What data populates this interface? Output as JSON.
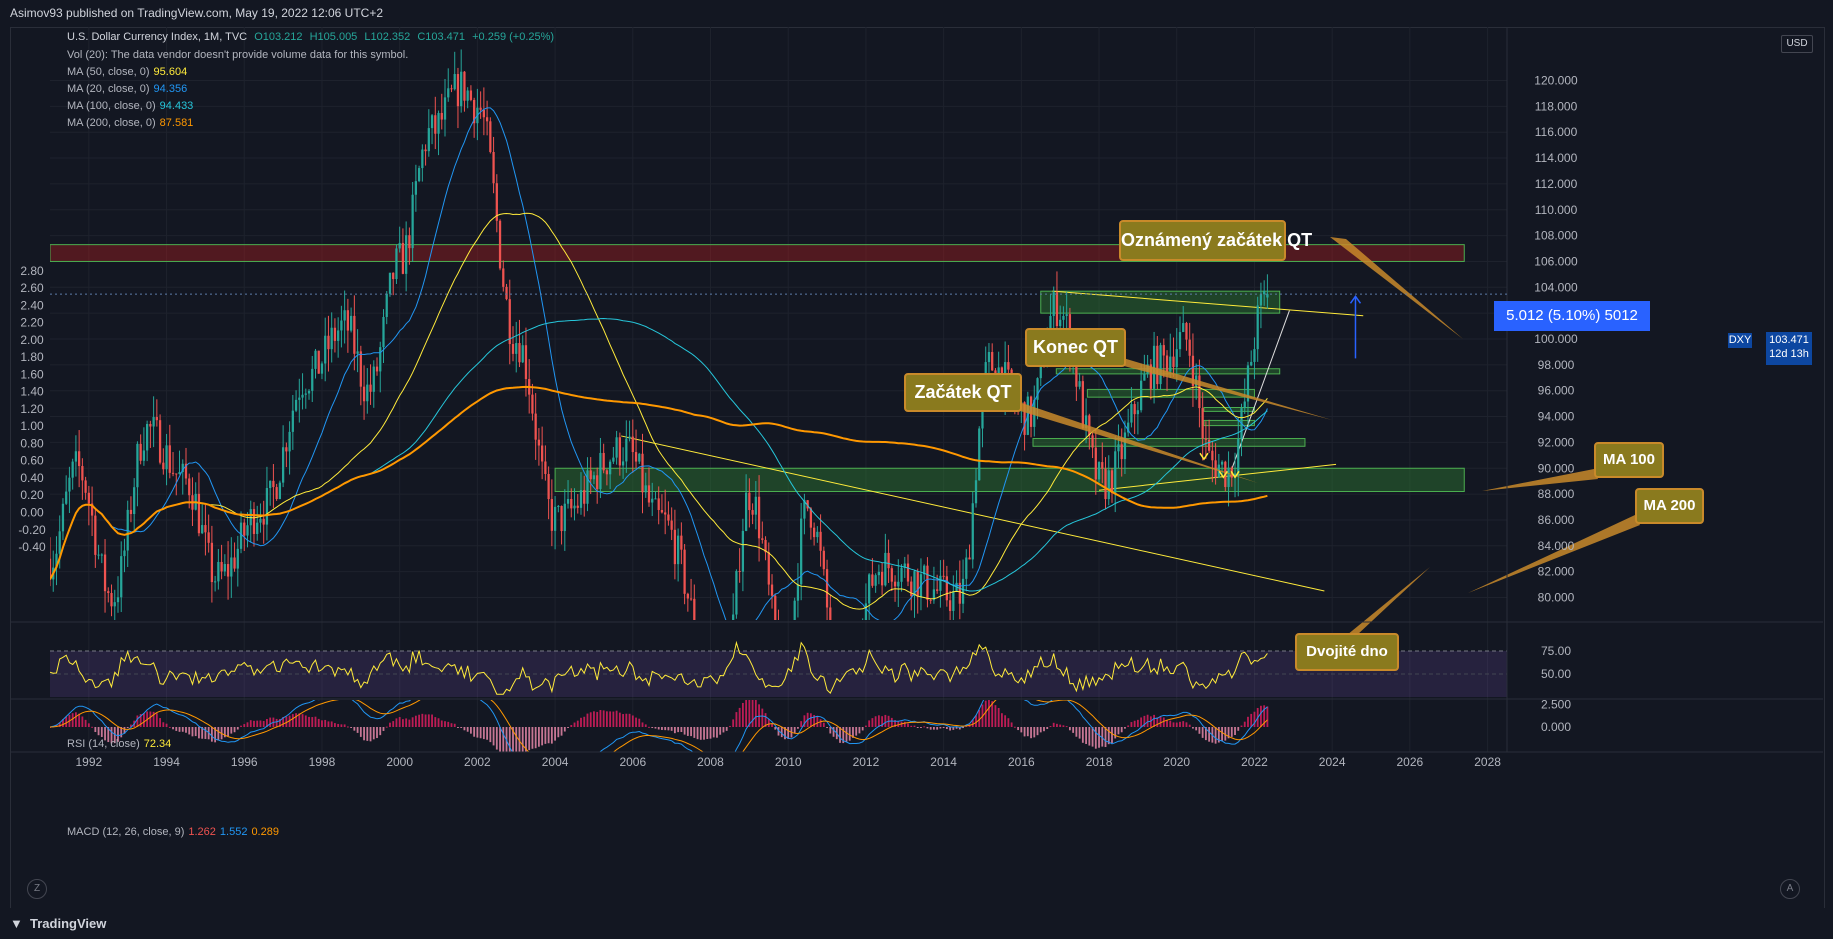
{
  "header": {
    "published": "Asimov93 published on TradingView.com, May 19, 2022 12:06 UTC+2"
  },
  "legend": {
    "symbol": "U.S. Dollar Currency Index, 1M, TVC",
    "ohlc": {
      "O": "O103.212",
      "H": "H105.005",
      "L": "L102.352",
      "C": "C103.471",
      "chg": "+0.259 (+0.25%)"
    },
    "vol": "Vol (20): The data vendor doesn't provide volume data for this symbol.",
    "ma": [
      {
        "label": "MA (50, close, 0)",
        "value": "95.604",
        "color": "#ffeb3b"
      },
      {
        "label": "MA (20, close, 0)",
        "value": "94.356",
        "color": "#2196f3"
      },
      {
        "label": "MA (100, close, 0)",
        "value": "94.433",
        "color": "#26c6da"
      },
      {
        "label": "MA (200, close, 0)",
        "value": "87.581",
        "color": "#ff9800"
      }
    ],
    "rsi": {
      "label": "RSI (14, close)",
      "value": "72.34"
    },
    "macd": {
      "label": "MACD (12, 26, close, 9)",
      "v1": "1.262",
      "v2": "1.552",
      "v3": "0.289"
    }
  },
  "axis": {
    "currency": "USD",
    "price_ticks": [
      "80.000",
      "82.000",
      "84.000",
      "86.000",
      "88.000",
      "90.000",
      "92.000",
      "94.000",
      "96.000",
      "98.000",
      "100.000",
      "102.000",
      "104.000",
      "106.000",
      "108.000",
      "110.000",
      "112.000",
      "114.000",
      "116.000",
      "118.000",
      "120.000"
    ],
    "left_ticks": [
      "-0.40",
      "-0.20",
      "0.00",
      "0.20",
      "0.40",
      "0.60",
      "0.80",
      "1.00",
      "1.20",
      "1.40",
      "1.60",
      "1.80",
      "2.00",
      "2.20",
      "2.40",
      "2.60",
      "2.80"
    ],
    "rsi_ticks": [
      "50.00",
      "75.00"
    ],
    "macd_ticks": [
      "0.000",
      "2.500"
    ],
    "years": [
      "1992",
      "1994",
      "1996",
      "1998",
      "2000",
      "2002",
      "2004",
      "2006",
      "2008",
      "2010",
      "2012",
      "2014",
      "2016",
      "2018",
      "2020",
      "2022",
      "2024",
      "2026",
      "2028"
    ]
  },
  "price_tag": {
    "symbol": "DXY",
    "price": "103.471",
    "countdown": "12d 13h"
  },
  "measure": {
    "label": "5.012 (5.10%) 5012"
  },
  "annotations": {
    "oznameny": "Oznámený začátek QT",
    "konec": "Konec QT",
    "zacatek": "Začátek QT",
    "ma100": "MA 100",
    "ma200": "MA 200",
    "dno": "Dvojité dno"
  },
  "footer": {
    "brand": "TradingView",
    "btn_left": "Z",
    "btn_right": "A"
  },
  "colors": {
    "up": "#26a69a",
    "down": "#ef5350",
    "zone_green": "#2e7d32",
    "zone_red": "#b71c1c"
  },
  "chart_data": {
    "type": "candlestick",
    "title": "U.S. Dollar Currency Index, 1M, TVC",
    "x_range": [
      1991,
      2028.5
    ],
    "ylim": [
      79,
      122
    ],
    "yaxis_side": "right",
    "price_anchors": [
      {
        "year": 1991.0,
        "price": 83.0
      },
      {
        "year": 1991.7,
        "price": 90.0
      },
      {
        "year": 1992.6,
        "price": 80.0
      },
      {
        "year": 1993.5,
        "price": 93.0
      },
      {
        "year": 1994.5,
        "price": 89.0
      },
      {
        "year": 1995.3,
        "price": 81.5
      },
      {
        "year": 1996.5,
        "price": 87.0
      },
      {
        "year": 1997.6,
        "price": 97.0
      },
      {
        "year": 1998.6,
        "price": 101.0
      },
      {
        "year": 1999.2,
        "price": 96.0
      },
      {
        "year": 2000.0,
        "price": 106.0
      },
      {
        "year": 2000.8,
        "price": 116.0
      },
      {
        "year": 2001.6,
        "price": 119.5
      },
      {
        "year": 2002.0,
        "price": 118.0
      },
      {
        "year": 2003.0,
        "price": 100.0
      },
      {
        "year": 2004.0,
        "price": 86.0
      },
      {
        "year": 2005.8,
        "price": 91.5
      },
      {
        "year": 2006.7,
        "price": 86.0
      },
      {
        "year": 2008.3,
        "price": 72.0
      },
      {
        "year": 2009.0,
        "price": 88.0
      },
      {
        "year": 2009.9,
        "price": 75.0
      },
      {
        "year": 2010.5,
        "price": 87.0
      },
      {
        "year": 2011.4,
        "price": 73.5
      },
      {
        "year": 2012.4,
        "price": 82.5
      },
      {
        "year": 2014.4,
        "price": 80.0
      },
      {
        "year": 2015.2,
        "price": 98.0
      },
      {
        "year": 2016.2,
        "price": 94.0
      },
      {
        "year": 2016.9,
        "price": 102.5
      },
      {
        "year": 2018.1,
        "price": 88.8
      },
      {
        "year": 2019.5,
        "price": 98.0
      },
      {
        "year": 2020.2,
        "price": 100.0
      },
      {
        "year": 2020.9,
        "price": 90.5
      },
      {
        "year": 2021.3,
        "price": 89.8
      },
      {
        "year": 2022.35,
        "price": 103.5
      }
    ],
    "series": [
      {
        "name": "MA (20, close, 0)",
        "value": 94.356,
        "color": "#2196f3"
      },
      {
        "name": "MA (50, close, 0)",
        "value": 95.604,
        "color": "#ffeb3b"
      },
      {
        "name": "MA (100, close, 0)",
        "value": 94.433,
        "color": "#26c6da"
      },
      {
        "name": "MA (200, close, 0)",
        "value": 87.581,
        "color": "#ff9800"
      }
    ],
    "zones": [
      {
        "kind": "resistance",
        "from_year": 1991.0,
        "to_year": 2027.4,
        "low": 106.0,
        "high": 107.3,
        "color": "red"
      },
      {
        "kind": "support",
        "from_year": 2016.5,
        "to_year": 2022.65,
        "low": 102.0,
        "high": 103.7,
        "color": "green"
      },
      {
        "kind": "support",
        "from_year": 2016.9,
        "to_year": 2022.65,
        "low": 97.3,
        "high": 97.7,
        "color": "green"
      },
      {
        "kind": "support",
        "from_year": 2017.7,
        "to_year": 2022.0,
        "low": 95.5,
        "high": 96.1,
        "color": "green"
      },
      {
        "kind": "support",
        "from_year": 2020.7,
        "to_year": 2022.0,
        "low": 94.4,
        "high": 94.7,
        "color": "green"
      },
      {
        "kind": "support",
        "from_year": 2020.7,
        "to_year": 2022.0,
        "low": 93.3,
        "high": 93.7,
        "color": "green"
      },
      {
        "kind": "support",
        "from_year": 2016.3,
        "to_year": 2023.3,
        "low": 91.7,
        "high": 92.3,
        "color": "green"
      },
      {
        "kind": "support",
        "from_year": 2004.0,
        "to_year": 2027.4,
        "low": 88.2,
        "high": 90.0,
        "color": "green"
      }
    ],
    "rsi": {
      "last": 72.34,
      "range": [
        25,
        85
      ]
    },
    "macd": {
      "macd": 1.262,
      "signal": 1.552,
      "hist": 0.289
    },
    "measure": {
      "from_year": 2024.6,
      "start": 98.5,
      "end": 103.3,
      "text": "5.012 (5.10%) 5012"
    }
  }
}
